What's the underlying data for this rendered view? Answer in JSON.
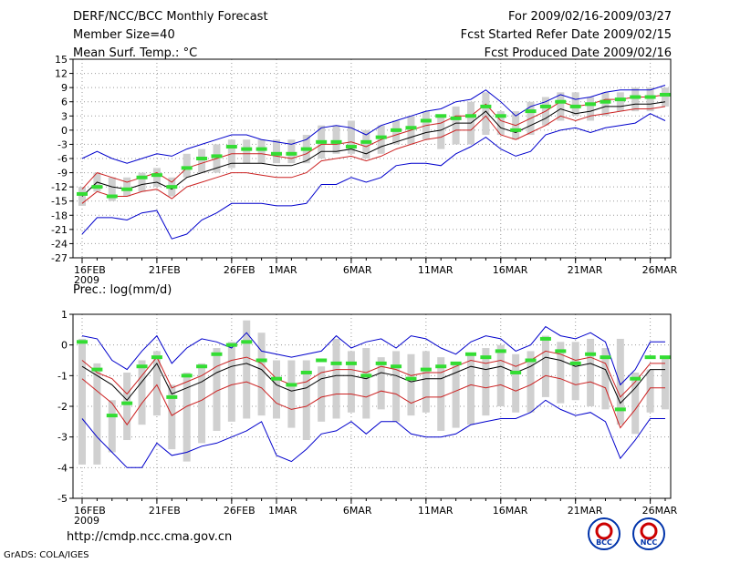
{
  "header": {
    "title": "DERF/NCC/BCC Monthly Forecast",
    "member_size": "Member Size=40",
    "variable": "Mean Surf. Temp.: °C",
    "period": "For 2009/02/16-2009/03/27",
    "started": "Fcst Started Refer Date 2009/02/15",
    "produced": "Fcst Produced Date 2009/02/16"
  },
  "footer": {
    "url": "http://cmdp.ncc.cma.gov.cn",
    "credit": "GrADS: COLA/IGES",
    "logo1_text": "BCC",
    "logo2_text": "NCC"
  },
  "colors": {
    "box": "#d0d0d0",
    "obs": "#33dd33",
    "mean": "#000000",
    "band": "#cc2222",
    "range": "#0000cc",
    "grid": "#999999"
  },
  "chart_data": [
    {
      "type": "box",
      "title": "Mean Surf. Temp.: °C",
      "x_tick_labels": [
        "16FEB\n2009",
        "21FEB",
        "26FEB",
        "1MAR",
        "6MAR",
        "11MAR",
        "16MAR",
        "21MAR",
        "26MAR"
      ],
      "x_tick_days": [
        0,
        5,
        10,
        13,
        18,
        23,
        28,
        33,
        38
      ],
      "n_days": 40,
      "ylim": [
        -27,
        15
      ],
      "yticks": [
        15,
        12,
        9,
        6,
        3,
        0,
        -3,
        -6,
        -9,
        -12,
        -15,
        -18,
        -21,
        -24,
        -27
      ],
      "box_low": [
        -16,
        -13,
        -15,
        -14,
        -13,
        -12,
        -14,
        -10,
        -9,
        -9,
        -8,
        -7,
        -7,
        -7,
        -7,
        -7,
        -6,
        -5,
        -5,
        -6,
        -5,
        -3,
        -3,
        -2,
        -4,
        -3,
        -3,
        -1,
        -1,
        -2,
        -1,
        1,
        2,
        3,
        2,
        3,
        4,
        4,
        4,
        5
      ],
      "box_high": [
        -12,
        -9,
        -10,
        -10,
        -9,
        -8,
        -10,
        -5,
        -4,
        -3,
        -2,
        -2,
        -2,
        -2,
        -2,
        -1,
        1,
        1,
        2,
        0,
        1,
        2,
        3,
        4,
        3,
        5,
        6,
        8,
        4,
        4,
        6,
        7,
        8,
        8,
        7,
        8,
        8,
        9,
        9,
        9
      ],
      "obs": [
        -13.5,
        -12,
        -14,
        -12.5,
        -10,
        -9.5,
        -12,
        -8,
        -6,
        -5.5,
        -3.5,
        -4,
        -4,
        -5,
        -5,
        -4,
        -2.5,
        -2.5,
        -3.5,
        -2.5,
        -1.5,
        0,
        0.5,
        2,
        3,
        2.5,
        3,
        5,
        3,
        0,
        4,
        5,
        6,
        5,
        5.5,
        6,
        6.5,
        7,
        7,
        7.5
      ],
      "upper": [
        -6,
        -4.5,
        -6,
        -7,
        -6,
        -5,
        -5.5,
        -4,
        -3,
        -2,
        -1,
        -1,
        -2,
        -2.5,
        -3,
        -2,
        0.5,
        1,
        0.5,
        -1,
        1,
        2,
        3,
        4,
        4.5,
        6,
        6.5,
        8.5,
        6,
        3,
        5,
        6,
        7.5,
        6.5,
        7,
        8,
        8.5,
        8.5,
        8.5,
        9.5
      ],
      "mean_hi": [
        -12.5,
        -9,
        -10,
        -11,
        -10,
        -9,
        -11,
        -8,
        -7,
        -6,
        -5,
        -5,
        -5,
        -5.5,
        -6,
        -5,
        -3,
        -3,
        -2.5,
        -3.5,
        -2,
        -1,
        0,
        1,
        1.5,
        3,
        3,
        5.5,
        2,
        1,
        2.5,
        4,
        6,
        5,
        5.5,
        6.5,
        6.5,
        7,
        7,
        7.5
      ],
      "mean": [
        -14,
        -11,
        -12,
        -12.5,
        -11.5,
        -11,
        -12.5,
        -10,
        -9,
        -8,
        -7,
        -7,
        -7,
        -7.5,
        -7.5,
        -6.5,
        -4.5,
        -4.5,
        -4,
        -5,
        -3.5,
        -2.5,
        -1.5,
        -0.5,
        0,
        1.5,
        1.5,
        4,
        0.5,
        -0.5,
        1,
        2.5,
        4.5,
        3.5,
        4,
        5,
        5,
        5.5,
        5.5,
        6
      ],
      "mean_lo": [
        -15.5,
        -13,
        -14,
        -14,
        -13,
        -12.5,
        -14.5,
        -12,
        -11,
        -10,
        -9,
        -9,
        -9.5,
        -10,
        -10,
        -9,
        -6.5,
        -6,
        -5.5,
        -6.5,
        -5.5,
        -4,
        -3,
        -2,
        -1.5,
        0,
        0,
        3,
        -1,
        -2,
        -0.5,
        1,
        3,
        2,
        3,
        3.5,
        4,
        4.5,
        4.5,
        5
      ],
      "lower": [
        -22,
        -18.5,
        -18.5,
        -19,
        -17.5,
        -17,
        -23,
        -22,
        -19,
        -17.5,
        -15.5,
        -15.5,
        -15.5,
        -16,
        -16,
        -15.5,
        -11.5,
        -11.5,
        -10,
        -11,
        -10,
        -7.5,
        -7,
        -7,
        -7.5,
        -5,
        -3.5,
        -1.5,
        -4,
        -5.5,
        -4.5,
        -1,
        0,
        0.5,
        -0.5,
        0.5,
        1,
        1.5,
        3.5,
        2
      ]
    },
    {
      "type": "box",
      "title": "Prec.: log(mm/d)",
      "x_tick_labels": [
        "16FEB\n2009",
        "21FEB",
        "26FEB",
        "1MAR",
        "6MAR",
        "11MAR",
        "16MAR",
        "21MAR",
        "26MAR"
      ],
      "x_tick_days": [
        0,
        5,
        10,
        13,
        18,
        23,
        28,
        33,
        38
      ],
      "n_days": 40,
      "ylim": [
        -5,
        1
      ],
      "yticks": [
        1,
        0,
        -1,
        -2,
        -3,
        -4,
        -5
      ],
      "box_low": [
        -3.9,
        -3.9,
        -3.5,
        -3.1,
        -2.6,
        -2.3,
        -3.4,
        -3.8,
        -3.2,
        -2.8,
        -2.5,
        -2.4,
        -2.3,
        -2.4,
        -2.7,
        -3.1,
        -2.5,
        -2.4,
        -2.2,
        -2.4,
        -2.1,
        -2.5,
        -2.3,
        -2.2,
        -2.8,
        -2.7,
        -2.6,
        -2.3,
        -2.0,
        -2.2,
        -2.2,
        -1.7,
        -1.9,
        -1.8,
        -2.0,
        -2.1,
        -2.6,
        -2.9,
        -2.2,
        -2.1
      ],
      "box_high": [
        0.2,
        -0.6,
        -1.8,
        -0.9,
        -0.5,
        -0.2,
        -1.3,
        -0.9,
        -0.6,
        -0.1,
        0.1,
        0.8,
        0.4,
        -0.5,
        -0.5,
        -0.5,
        -0.7,
        0.2,
        -0.2,
        -0.1,
        -0.4,
        -0.2,
        -0.3,
        -0.2,
        -0.4,
        -0.6,
        -0.3,
        -0.1,
        0,
        -0.3,
        -0.2,
        0.3,
        0.1,
        0.1,
        0.2,
        -0.1,
        0.2,
        -0.9,
        -0.8,
        -0.4
      ],
      "obs": [
        0.1,
        -0.8,
        -2.3,
        -1.9,
        -0.7,
        -0.4,
        -1.7,
        -1.0,
        -0.7,
        -0.3,
        0,
        0.1,
        -0.5,
        -1.1,
        -1.3,
        -0.9,
        -0.5,
        -0.6,
        -0.6,
        -1.0,
        -0.6,
        -0.7,
        -1.1,
        -0.8,
        -0.7,
        -0.6,
        -0.3,
        -0.4,
        -0.2,
        -0.9,
        -0.5,
        0.2,
        -0.2,
        -0.6,
        -0.3,
        -0.4,
        -2.1,
        -1.1,
        -0.4,
        -0.4
      ],
      "upper": [
        0.3,
        0.2,
        -0.5,
        -0.8,
        -0.2,
        0.3,
        -0.6,
        -0.1,
        0.2,
        0.1,
        -0.1,
        0.4,
        -0.2,
        -0.3,
        -0.4,
        -0.3,
        -0.2,
        0.3,
        -0.1,
        0.1,
        0.2,
        -0.1,
        0.3,
        0.2,
        -0.1,
        -0.3,
        0.1,
        0.3,
        0.2,
        -0.2,
        0,
        0.6,
        0.3,
        0.2,
        0.4,
        0.1,
        -1.3,
        -0.8,
        0.1,
        0.1
      ],
      "mean_hi": [
        -0.5,
        -0.9,
        -1.1,
        -1.6,
        -1.0,
        -0.4,
        -1.4,
        -1.2,
        -1.0,
        -0.7,
        -0.5,
        -0.4,
        -0.6,
        -1.1,
        -1.3,
        -1.2,
        -0.9,
        -0.8,
        -0.8,
        -0.9,
        -0.7,
        -0.8,
        -1.0,
        -0.9,
        -0.9,
        -0.7,
        -0.5,
        -0.6,
        -0.5,
        -0.7,
        -0.5,
        -0.2,
        -0.3,
        -0.5,
        -0.4,
        -0.6,
        -1.7,
        -1.2,
        -0.6,
        -0.6
      ],
      "mean": [
        -0.7,
        -1.0,
        -1.3,
        -1.8,
        -1.2,
        -0.6,
        -1.6,
        -1.4,
        -1.2,
        -0.9,
        -0.7,
        -0.6,
        -0.8,
        -1.3,
        -1.5,
        -1.4,
        -1.1,
        -1.0,
        -1.0,
        -1.1,
        -0.9,
        -1.0,
        -1.2,
        -1.1,
        -1.1,
        -0.9,
        -0.7,
        -0.8,
        -0.7,
        -0.9,
        -0.7,
        -0.4,
        -0.5,
        -0.7,
        -0.6,
        -0.8,
        -1.9,
        -1.4,
        -0.8,
        -0.8
      ],
      "mean_lo": [
        -1.1,
        -1.5,
        -1.9,
        -2.6,
        -1.9,
        -1.3,
        -2.3,
        -2.0,
        -1.8,
        -1.5,
        -1.3,
        -1.2,
        -1.4,
        -1.9,
        -2.1,
        -2.0,
        -1.7,
        -1.6,
        -1.6,
        -1.7,
        -1.5,
        -1.6,
        -1.9,
        -1.7,
        -1.7,
        -1.5,
        -1.3,
        -1.4,
        -1.3,
        -1.5,
        -1.3,
        -1.0,
        -1.1,
        -1.3,
        -1.2,
        -1.4,
        -2.7,
        -2.1,
        -1.4,
        -1.4
      ],
      "lower": [
        -2.4,
        -3.0,
        -3.5,
        -4.0,
        -4.0,
        -3.2,
        -3.6,
        -3.5,
        -3.3,
        -3.2,
        -3.0,
        -2.8,
        -2.5,
        -3.6,
        -3.8,
        -3.4,
        -2.9,
        -2.8,
        -2.5,
        -2.9,
        -2.5,
        -2.5,
        -2.9,
        -3.0,
        -3.0,
        -2.9,
        -2.6,
        -2.5,
        -2.4,
        -2.4,
        -2.2,
        -1.8,
        -2.1,
        -2.3,
        -2.2,
        -2.5,
        -3.7,
        -3.1,
        -2.4,
        -2.4
      ]
    }
  ]
}
